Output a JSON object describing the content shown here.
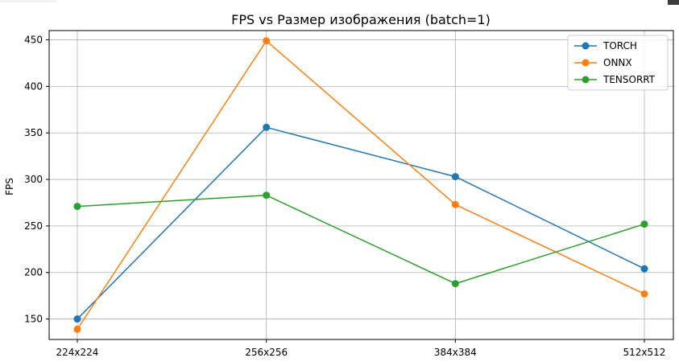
{
  "chart_data": {
    "type": "line",
    "title": "FPS vs Размер изображения (batch=1)",
    "xlabel": "",
    "ylabel": "FPS",
    "categories": [
      "224x224",
      "256x256",
      "384x384",
      "512x512"
    ],
    "ylim": [
      128,
      460
    ],
    "yticks": [
      150,
      200,
      250,
      300,
      350,
      400,
      450
    ],
    "grid": true,
    "legend_position": "top-right",
    "series": [
      {
        "name": "TORCH",
        "color": "#1f77b4",
        "values": [
          150,
          356,
          303,
          204
        ]
      },
      {
        "name": "ONNX",
        "color": "#ff7f0e",
        "values": [
          139,
          449,
          273,
          177
        ]
      },
      {
        "name": "TENSORRT",
        "color": "#2ca02c",
        "values": [
          271,
          283,
          188,
          252
        ]
      }
    ]
  }
}
